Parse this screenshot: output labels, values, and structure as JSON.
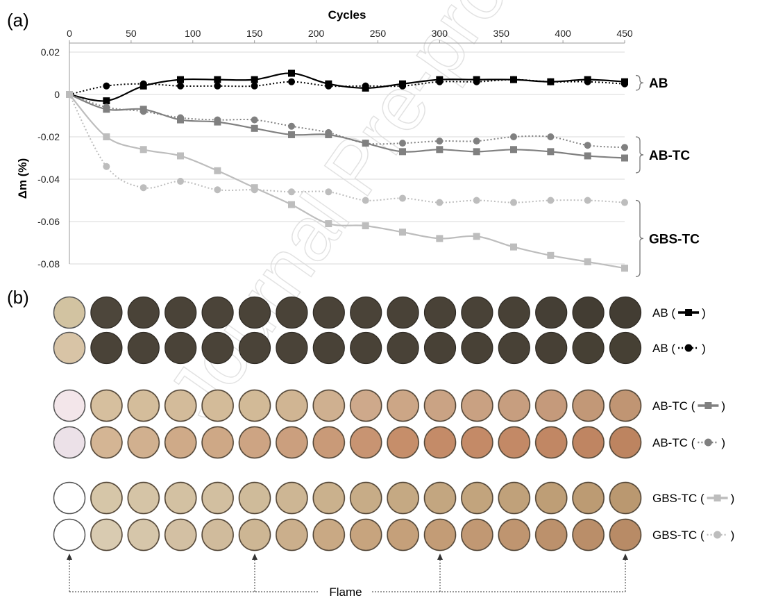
{
  "panel_a_label": "(a)",
  "panel_b_label": "(b)",
  "watermark": "Journal Pre-proof",
  "flame_label": "Flame",
  "colors": {
    "ab": "#000000",
    "ab_tc": "#808080",
    "gbs_tc": "#bdbdbd",
    "grid": "#d9d9d9"
  },
  "chart_data": {
    "type": "line",
    "title": "",
    "xlabel": "Cycles",
    "ylabel": "Δm (%)",
    "x_axis_position": "top",
    "xlim": [
      0,
      450
    ],
    "ylim": [
      -0.085,
      0.02
    ],
    "xticks": [
      0,
      50,
      100,
      150,
      200,
      250,
      300,
      350,
      400,
      450
    ],
    "yticks": [
      0.02,
      0,
      -0.02,
      -0.04,
      -0.06,
      -0.08
    ],
    "ytick_labels": [
      "0.02",
      "0",
      "-0.02",
      "-0.04",
      "-0.06",
      "-0.08"
    ],
    "grid": "horizontal",
    "x": [
      0,
      30,
      60,
      90,
      120,
      150,
      180,
      210,
      240,
      270,
      300,
      330,
      360,
      390,
      420,
      450
    ],
    "series": [
      {
        "group": "AB",
        "style": "solid",
        "marker": "square",
        "color": "#000000",
        "values": [
          0,
          -0.003,
          0.004,
          0.007,
          0.007,
          0.007,
          0.01,
          0.005,
          0.003,
          0.005,
          0.007,
          0.007,
          0.007,
          0.006,
          0.007,
          0.006
        ]
      },
      {
        "group": "AB",
        "style": "dotted",
        "marker": "circle",
        "color": "#000000",
        "values": [
          0,
          0.004,
          0.005,
          0.004,
          0.004,
          0.004,
          0.006,
          0.004,
          0.004,
          0.004,
          0.006,
          0.006,
          0.007,
          0.006,
          0.006,
          0.005
        ]
      },
      {
        "group": "AB-TC",
        "style": "solid",
        "marker": "square",
        "color": "#808080",
        "values": [
          0,
          -0.007,
          -0.007,
          -0.012,
          -0.013,
          -0.016,
          -0.019,
          -0.019,
          -0.023,
          -0.027,
          -0.026,
          -0.027,
          -0.026,
          -0.027,
          -0.029,
          -0.03
        ]
      },
      {
        "group": "AB-TC",
        "style": "dotted",
        "marker": "circle",
        "color": "#808080",
        "values": [
          0,
          -0.006,
          -0.008,
          -0.011,
          -0.012,
          -0.012,
          -0.015,
          -0.018,
          -0.023,
          -0.023,
          -0.022,
          -0.022,
          -0.02,
          -0.02,
          -0.024,
          -0.025
        ]
      },
      {
        "group": "GBS-TC",
        "style": "solid",
        "marker": "square",
        "color": "#bdbdbd",
        "values": [
          0,
          -0.02,
          -0.026,
          -0.029,
          -0.036,
          -0.044,
          -0.052,
          -0.061,
          -0.062,
          -0.065,
          -0.068,
          -0.067,
          -0.072,
          -0.076,
          -0.079,
          -0.082
        ]
      },
      {
        "group": "GBS-TC",
        "style": "dotted",
        "marker": "circle",
        "color": "#bdbdbd",
        "values": [
          0,
          -0.034,
          -0.044,
          -0.041,
          -0.045,
          -0.045,
          -0.046,
          -0.046,
          -0.05,
          -0.049,
          -0.051,
          -0.05,
          -0.051,
          -0.05,
          -0.05,
          -0.051
        ]
      }
    ],
    "group_labels": [
      {
        "label": "AB",
        "y_range": [
          0.004,
          0.009
        ]
      },
      {
        "label": "AB-TC",
        "y_range": [
          -0.02,
          -0.037
        ]
      },
      {
        "label": "AB-TC",
        "y_range": [
          -0.02,
          -0.037
        ]
      },
      {
        "label": "GBS-TC",
        "y_range": [
          -0.05,
          -0.086
        ]
      }
    ]
  },
  "group_brackets": [
    {
      "label": "AB",
      "y_top": 0.009,
      "y_bottom": 0.002
    },
    {
      "label": "AB-TC",
      "y_top": -0.02,
      "y_bottom": -0.037
    },
    {
      "label": "GBS-TC",
      "y_top": -0.05,
      "y_bottom": -0.086
    }
  ],
  "sample_rows": [
    {
      "label": "AB (",
      "style": "solid",
      "marker": "square",
      "color": "#000000",
      "first_disk": "#d2c3a1",
      "disk_colors": [
        "#4d463b",
        "#4a4338",
        "#4a4338",
        "#4b4439",
        "#4a4338",
        "#4a4338",
        "#4a4338",
        "#4a4338",
        "#494237",
        "#494237",
        "#494237",
        "#484136",
        "#453f35",
        "#433d33",
        "#433d33"
      ]
    },
    {
      "label": "AB (",
      "style": "dotted",
      "marker": "circle",
      "color": "#000000",
      "first_disk": "#d8c4a6",
      "disk_colors": [
        "#4a4338",
        "#4a4338",
        "#4a4338",
        "#4a4338",
        "#4a4338",
        "#4a4338",
        "#494237",
        "#494237",
        "#494237",
        "#484136",
        "#484136",
        "#484136",
        "#474035",
        "#464034",
        "#464034"
      ]
    },
    {
      "label": "AB-TC (",
      "style": "solid",
      "marker": "square",
      "color": "#808080",
      "first_disk": "#f3e6ea",
      "disk_colors": [
        "#d6bf9e",
        "#d4bd9b",
        "#d3bb9a",
        "#d3bb99",
        "#d2ba97",
        "#d0b593",
        "#cfb090",
        "#cea98b",
        "#cca686",
        "#caa384",
        "#c9a182",
        "#c79e7f",
        "#c59a7b",
        "#c29877",
        "#c09573"
      ]
    },
    {
      "label": "AB-TC (",
      "style": "dotted",
      "marker": "circle",
      "color": "#808080",
      "first_disk": "#ece1e8",
      "disk_colors": [
        "#d4b594",
        "#d1b08f",
        "#cfaa88",
        "#cea886",
        "#cda483",
        "#cb9f7e",
        "#c99a78",
        "#c89472",
        "#c68e6a",
        "#c48b68",
        "#c48a67",
        "#c38966",
        "#c18764",
        "#bf8562",
        "#bd8460"
      ]
    },
    {
      "label": "GBS-TC (",
      "style": "solid",
      "marker": "square",
      "color": "#bdbdbd",
      "first_disk": "#ffffff",
      "disk_colors": [
        "#d6c6a8",
        "#d5c4a6",
        "#d3c1a2",
        "#d2bfa0",
        "#cfbb9a",
        "#cdb694",
        "#cab18d",
        "#c7ac87",
        "#c5a983",
        "#c3a680",
        "#c2a47d",
        "#c0a17a",
        "#be9e76",
        "#bc9b73",
        "#ba9870"
      ]
    },
    {
      "label": "GBS-TC (",
      "style": "dotted",
      "marker": "circle",
      "color": "#bdbdbd",
      "first_disk": "#ffffff",
      "disk_colors": [
        "#d9cbb1",
        "#d6c6aa",
        "#d3c0a3",
        "#d0bb9c",
        "#cdb694",
        "#cbaf8c",
        "#c9a984",
        "#c7a47e",
        "#c5a07a",
        "#c39c76",
        "#c19873",
        "#bf9570",
        "#bc916c",
        "#ba8e69",
        "#b88b66"
      ]
    }
  ],
  "row_label_suffix": ")",
  "flame_marker_columns": [
    0,
    5,
    10,
    15
  ]
}
